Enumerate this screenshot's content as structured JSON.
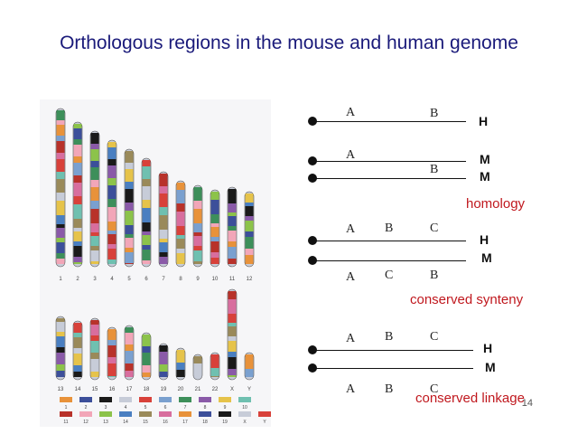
{
  "title": "Orthologous regions in the mouse and human genome",
  "figure": {
    "chromosome_labels_top": [
      "1",
      "2",
      "3",
      "4",
      "5",
      "6",
      "7",
      "8",
      "9",
      "10",
      "11",
      "12"
    ],
    "chromosome_labels_bottom": [
      "13",
      "14",
      "15",
      "16",
      "17",
      "18",
      "19",
      "20",
      "21",
      "22",
      "X",
      "Y"
    ],
    "legend_top_numbers": [
      "1",
      "2",
      "3",
      "4",
      "5",
      "6",
      "7",
      "8",
      "9",
      "10"
    ],
    "legend_bottom_numbers": [
      "11",
      "12",
      "13",
      "14",
      "15",
      "16",
      "17",
      "18",
      "19",
      "X",
      "Y"
    ]
  },
  "panels": {
    "homology_panel": {
      "row1": {
        "a": "A",
        "b": "B",
        "species": "H"
      },
      "row2": {
        "a": "A",
        "species": "M"
      },
      "row3": {
        "b": "B",
        "species": "M"
      },
      "caption": "homology"
    },
    "synteny_panel": {
      "top": {
        "a": "A",
        "b": "B",
        "c": "C",
        "species": "H"
      },
      "bottom": {
        "a": "A",
        "b": "C",
        "c": "B",
        "species": "M"
      },
      "caption": "conserved synteny"
    },
    "linkage_panel": {
      "top": {
        "a": "A",
        "b": "B",
        "c": "C",
        "species": "H"
      },
      "bottom": {
        "a": "A",
        "b": "B",
        "c": "C",
        "species": "M"
      },
      "caption": "conserved linkage"
    }
  },
  "page_number": "14"
}
